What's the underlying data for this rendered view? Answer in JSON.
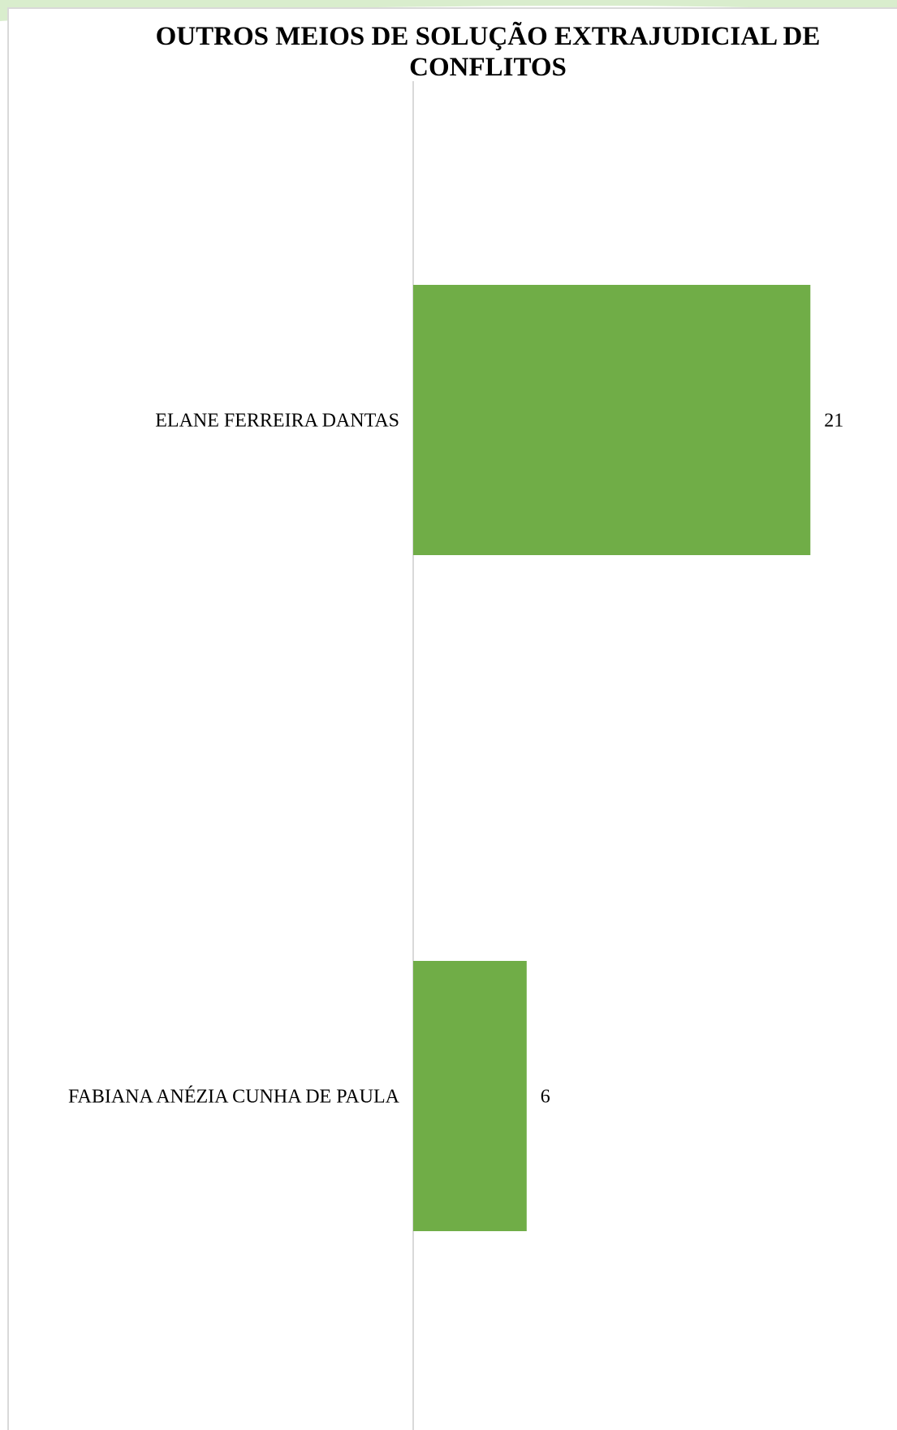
{
  "colors": {
    "bar": "#70AD47",
    "decor_green": "#C9E6B8",
    "axis": "#D9D9D9",
    "frame": "#D9D9D9"
  },
  "chart_data": {
    "type": "bar",
    "orientation": "horizontal",
    "title_lines": [
      "OUTROS MEIOS DE SOLUÇÃO EXTRAJUDICIAL DE",
      "CONFLITOS"
    ],
    "categories": [
      "ELANE FERREIRA DANTAS",
      "FABIANA ANÉZIA CUNHA DE PAULA"
    ],
    "values": [
      21,
      6
    ],
    "data_labels": [
      "21",
      "6"
    ],
    "xlim": [
      0,
      22
    ],
    "grid": false,
    "legend": "none"
  }
}
